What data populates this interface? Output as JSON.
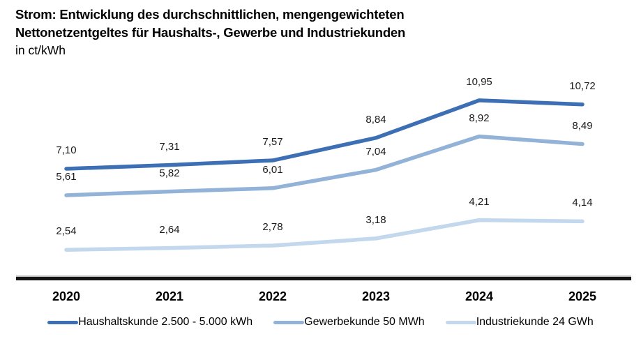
{
  "title": {
    "line1": "Strom: Entwicklung des durchschnittlichen, mengengewichteten",
    "line2": "Nettonetzentgeltes für Haushalts-, Gewerbe und Industriekunden",
    "unit": "in ct/kWh"
  },
  "chart_data": {
    "type": "line",
    "title": "Strom: Entwicklung des durchschnittlichen, mengengewichteten Nettonetzentgeltes für Haushalts-, Gewerbe und Industriekunden",
    "subtitle": "in ct/kWh",
    "categories": [
      "2020",
      "2021",
      "2022",
      "2023",
      "2024",
      "2025"
    ],
    "series": [
      {
        "name": "Haushaltskunde 2.500 - 5.000 kWh",
        "color": "#3d6fb4",
        "values": [
          7.1,
          7.31,
          7.57,
          8.84,
          10.95,
          10.72
        ],
        "labels": [
          "7,10",
          "7,31",
          "7,57",
          "8,84",
          "10,95",
          "10,72"
        ]
      },
      {
        "name": "Gewerbekunde 50 MWh",
        "color": "#92b2d8",
        "values": [
          5.61,
          5.82,
          6.01,
          7.04,
          8.92,
          8.49
        ],
        "labels": [
          "5,61",
          "5,82",
          "6,01",
          "7,04",
          "8,92",
          "8,49"
        ]
      },
      {
        "name": "Industriekunde 24 GWh",
        "color": "#c3d7ed",
        "values": [
          2.54,
          2.64,
          2.78,
          3.18,
          4.21,
          4.14
        ],
        "labels": [
          "2,54",
          "2,64",
          "2,78",
          "3,18",
          "4,21",
          "4,14"
        ]
      }
    ],
    "xlabel": "",
    "ylabel": "ct/kWh",
    "ylim": [
      0.9,
      12.75
    ],
    "grid": false,
    "y_axis_visible": false,
    "data_labels_visible": true,
    "legend_position": "bottom"
  }
}
